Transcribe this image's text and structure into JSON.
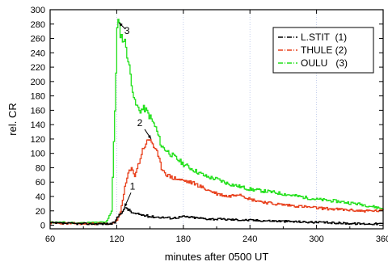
{
  "chart_data": {
    "type": "line",
    "title": "",
    "xlabel": "minutes after 0500 UT",
    "ylabel": "rel. CR",
    "xlim": [
      60,
      360
    ],
    "ylim": [
      -5,
      300
    ],
    "xticks": [
      60,
      120,
      180,
      240,
      300,
      360
    ],
    "yticks": [
      0,
      20,
      40,
      60,
      80,
      100,
      120,
      140,
      160,
      180,
      200,
      220,
      240,
      260,
      280,
      300
    ],
    "grid": "vertical dotted lines at x ticks",
    "legend_position": "top-right",
    "colors": {
      "lstit": "#000000",
      "thule": "#e8401c",
      "oulu": "#22e01b"
    },
    "series": [
      {
        "name": "L.STIT  (1)",
        "key": "lstit",
        "x": [
          60,
          90,
          115,
          118,
          120,
          123,
          126,
          128,
          130,
          133,
          136,
          140,
          150,
          160,
          170,
          180,
          200,
          220,
          240,
          260,
          280,
          300,
          320,
          340,
          360
        ],
        "y": [
          3,
          2,
          2,
          4,
          10,
          17,
          21,
          25,
          22,
          18,
          16,
          15,
          12,
          11,
          10,
          12,
          9,
          8,
          7,
          6,
          5,
          4,
          3,
          2,
          2
        ]
      },
      {
        "name": "THULE (2)",
        "key": "thule",
        "x": [
          60,
          90,
          115,
          120,
          123,
          126,
          130,
          133,
          136,
          140,
          143,
          146,
          150,
          153,
          156,
          160,
          165,
          170,
          180,
          190,
          200,
          210,
          220,
          230,
          240,
          250,
          260,
          280,
          300,
          320,
          340,
          360
        ],
        "y": [
          3,
          2,
          2,
          6,
          18,
          45,
          72,
          78,
          70,
          88,
          105,
          114,
          120,
          110,
          100,
          80,
          70,
          66,
          62,
          58,
          50,
          44,
          40,
          44,
          36,
          33,
          30,
          27,
          24,
          22,
          20,
          20
        ]
      },
      {
        "name": "OULU   (3)",
        "key": "oulu",
        "x": [
          60,
          90,
          110,
          115,
          118,
          120,
          121,
          122,
          124,
          126,
          128,
          130,
          133,
          136,
          140,
          145,
          150,
          155,
          160,
          170,
          180,
          190,
          200,
          210,
          220,
          240,
          260,
          280,
          300,
          320,
          340,
          360
        ],
        "y": [
          4,
          3,
          4,
          20,
          160,
          272,
          283,
          275,
          262,
          258,
          250,
          228,
          200,
          170,
          160,
          162,
          150,
          135,
          110,
          97,
          85,
          76,
          68,
          64,
          58,
          50,
          46,
          41,
          36,
          33,
          29,
          23
        ]
      }
    ],
    "annotations": [
      {
        "label": "1",
        "x": 127,
        "y": 25
      },
      {
        "label": "2",
        "x": 151,
        "y": 120
      },
      {
        "label": "3",
        "x": 122,
        "y": 282
      }
    ]
  }
}
